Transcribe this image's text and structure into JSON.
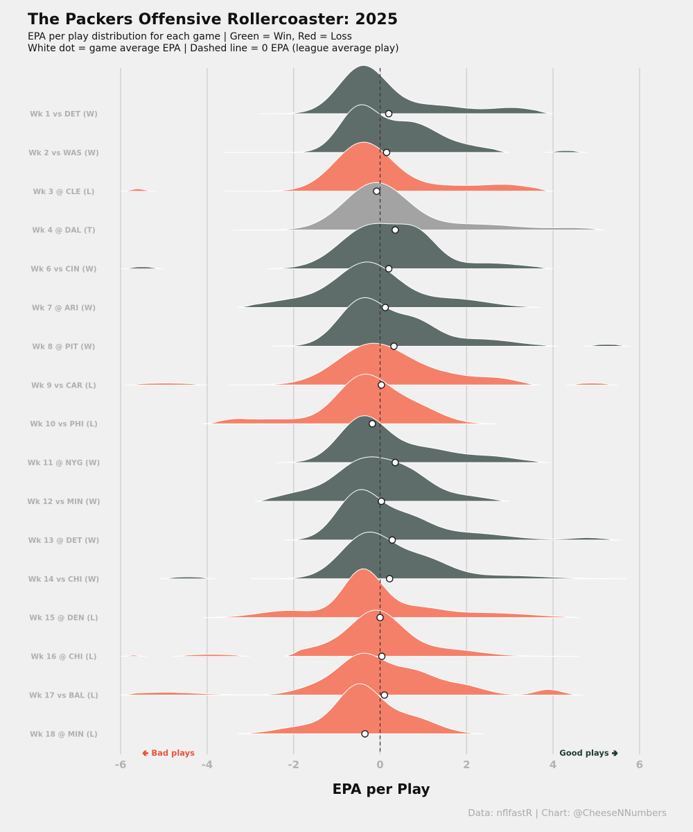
{
  "title": "The Packers Offensive Rollercoaster: 2025",
  "subtitle1": "EPA per play distribution for each game | Green = Win, Red = Loss",
  "subtitle2": "White dot = game average EPA | Dashed line = 0 EPA (league average play)",
  "caption": "Data: nflfastR | Chart: @CheeseNNumbers",
  "colors": {
    "win": "#5e6d69",
    "loss": "#f58069",
    "tie": "#a3a3a3",
    "bad_label": "#e8553a",
    "good_label": "#1e3a34"
  },
  "chart_data": {
    "type": "ridgeline",
    "xlabel": "EPA per Play",
    "xlim": [
      -6,
      6
    ],
    "xticks": [
      "-6",
      "-4",
      "-2",
      "0",
      "2",
      "4",
      "6"
    ],
    "annotations": {
      "bad": "🢀 Bad plays",
      "good": "Good plays 🢂"
    },
    "games": [
      {
        "label": "Wk 1 vs DET (W)",
        "result": "W",
        "mean": 0.2,
        "range": [
          -2.8,
          4.0
        ],
        "peaks": [
          [
            -0.4,
            1.0,
            0.55
          ],
          [
            1.2,
            0.18,
            0.8
          ],
          [
            3.1,
            0.12,
            0.5
          ]
        ],
        "extra": []
      },
      {
        "label": "Wk 2 vs WAS (W)",
        "result": "W",
        "mean": 0.15,
        "range": [
          -3.6,
          3.0
        ],
        "peaks": [
          [
            -0.5,
            0.92,
            0.45
          ],
          [
            0.7,
            0.62,
            0.6
          ],
          [
            2.0,
            0.12,
            0.6
          ]
        ],
        "extra": [
          [
            3.8,
            4.8,
            0.04
          ]
        ]
      },
      {
        "label": "Wk 3 @ CLE (L)",
        "result": "L",
        "mean": -0.08,
        "range": [
          -3.6,
          4.0
        ],
        "peaks": [
          [
            -0.4,
            1.0,
            0.65
          ],
          [
            1.5,
            0.12,
            1.3
          ],
          [
            3.0,
            0.08,
            0.5
          ]
        ],
        "extra": [
          [
            -6.0,
            -5.2,
            0.05
          ]
        ]
      },
      {
        "label": "Wk 4 @ DAL (T)",
        "result": "T",
        "mean": 0.35,
        "range": [
          -3.4,
          5.2
        ],
        "peaks": [
          [
            -0.1,
            1.0,
            0.72
          ],
          [
            2.2,
            0.12,
            1.0
          ],
          [
            4.5,
            0.04,
            0.5
          ]
        ],
        "extra": []
      },
      {
        "label": "Wk 6 vs CIN (W)",
        "result": "W",
        "mean": 0.2,
        "range": [
          -2.6,
          4.0
        ],
        "peaks": [
          [
            -0.2,
            0.92,
            0.72
          ],
          [
            0.9,
            0.55,
            0.45
          ],
          [
            2.5,
            0.12,
            0.8
          ]
        ],
        "extra": [
          [
            -6.0,
            -5.0,
            0.04
          ]
        ]
      },
      {
        "label": "Wk 7 @ ARI (W)",
        "result": "W",
        "mean": 0.12,
        "range": [
          -3.3,
          3.7
        ],
        "peaks": [
          [
            -0.3,
            0.95,
            0.7
          ],
          [
            -2.0,
            0.15,
            0.7
          ],
          [
            1.7,
            0.18,
            0.8
          ]
        ],
        "extra": []
      },
      {
        "label": "Wk 8 @ PIT (W)",
        "result": "W",
        "mean": 0.32,
        "range": [
          -2.5,
          4.1
        ],
        "peaks": [
          [
            -0.4,
            1.0,
            0.55
          ],
          [
            0.8,
            0.5,
            0.5
          ],
          [
            2.3,
            0.15,
            0.8
          ]
        ],
        "extra": [
          [
            4.7,
            5.8,
            0.04
          ]
        ]
      },
      {
        "label": "Wk 9 vs CAR (L)",
        "result": "L",
        "mean": 0.03,
        "range": [
          -3.5,
          3.7
        ],
        "peaks": [
          [
            -0.2,
            0.85,
            0.8
          ],
          [
            1.5,
            0.2,
            0.9
          ],
          [
            2.8,
            0.08,
            0.4
          ]
        ],
        "extra": [
          [
            -5.9,
            -4.0,
            0.04
          ],
          [
            4.3,
            5.5,
            0.04
          ]
        ]
      },
      {
        "label": "Wk 10 vs PHI (L)",
        "result": "L",
        "mean": -0.18,
        "range": [
          -4.1,
          2.7
        ],
        "peaks": [
          [
            -0.4,
            1.0,
            0.6
          ],
          [
            0.8,
            0.35,
            0.6
          ],
          [
            -2.5,
            0.1,
            0.7
          ],
          [
            -3.4,
            0.06,
            0.3
          ]
        ],
        "extra": []
      },
      {
        "label": "Wk 11 @ NYG (W)",
        "result": "W",
        "mean": 0.35,
        "range": [
          -2.4,
          3.9
        ],
        "peaks": [
          [
            -0.4,
            0.95,
            0.55
          ],
          [
            1.0,
            0.3,
            0.7
          ],
          [
            2.6,
            0.12,
            0.6
          ]
        ],
        "extra": []
      },
      {
        "label": "Wk 12 vs MIN (W)",
        "result": "W",
        "mean": 0.03,
        "range": [
          -2.9,
          3.0
        ],
        "peaks": [
          [
            -0.4,
            0.85,
            0.65
          ],
          [
            0.7,
            0.5,
            0.55
          ],
          [
            -1.9,
            0.15,
            0.5
          ],
          [
            2.0,
            0.1,
            0.5
          ]
        ],
        "extra": []
      },
      {
        "label": "Wk 13 @ DET (W)",
        "result": "W",
        "mean": 0.28,
        "range": [
          -2.2,
          5.6
        ],
        "peaks": [
          [
            -0.5,
            1.0,
            0.5
          ],
          [
            0.6,
            0.45,
            0.55
          ],
          [
            2.0,
            0.15,
            0.9
          ],
          [
            4.8,
            0.05,
            0.4
          ]
        ],
        "extra": []
      },
      {
        "label": "Wk 14 vs CHI (W)",
        "result": "W",
        "mean": 0.22,
        "range": [
          -3.0,
          5.7
        ],
        "peaks": [
          [
            -0.3,
            0.95,
            0.6
          ],
          [
            1.0,
            0.4,
            0.6
          ],
          [
            2.8,
            0.07,
            1.0
          ]
        ],
        "extra": [
          [
            -5.1,
            -3.8,
            0.04
          ]
        ]
      },
      {
        "label": "Wk 15 @ DEN (L)",
        "result": "L",
        "mean": 0.0,
        "range": [
          -4.1,
          4.6
        ],
        "peaks": [
          [
            -0.4,
            1.0,
            0.45
          ],
          [
            -2.1,
            0.15,
            0.7
          ],
          [
            0.8,
            0.2,
            0.6
          ],
          [
            2.5,
            0.1,
            1.0
          ]
        ],
        "extra": []
      },
      {
        "label": "Wk 16 @ CHI (L)",
        "result": "L",
        "mean": 0.04,
        "range": [
          -2.2,
          4.6
        ],
        "peaks": [
          [
            -0.1,
            0.95,
            0.6
          ],
          [
            -1.5,
            0.15,
            0.6
          ],
          [
            1.5,
            0.15,
            0.8
          ]
        ],
        "extra": [
          [
            -6.0,
            -5.4,
            0.03
          ],
          [
            -4.8,
            -3.0,
            0.04
          ]
        ]
      },
      {
        "label": "Wk 17 vs BAL (L)",
        "result": "L",
        "mean": 0.1,
        "range": [
          -6.0,
          4.7
        ],
        "peaks": [
          [
            -0.4,
            0.85,
            0.55
          ],
          [
            0.8,
            0.45,
            0.5
          ],
          [
            1.9,
            0.2,
            0.5
          ],
          [
            3.9,
            0.12,
            0.3
          ],
          [
            -1.5,
            0.15,
            0.5
          ],
          [
            -5.0,
            0.06,
            0.8
          ]
        ],
        "extra": []
      },
      {
        "label": "Wk 18 @ MIN (L)",
        "result": "L",
        "mean": -0.35,
        "range": [
          -3.3,
          2.4
        ],
        "peaks": [
          [
            -0.5,
            1.0,
            0.5
          ],
          [
            0.7,
            0.35,
            0.6
          ],
          [
            -1.8,
            0.15,
            0.6
          ]
        ],
        "extra": []
      }
    ]
  }
}
